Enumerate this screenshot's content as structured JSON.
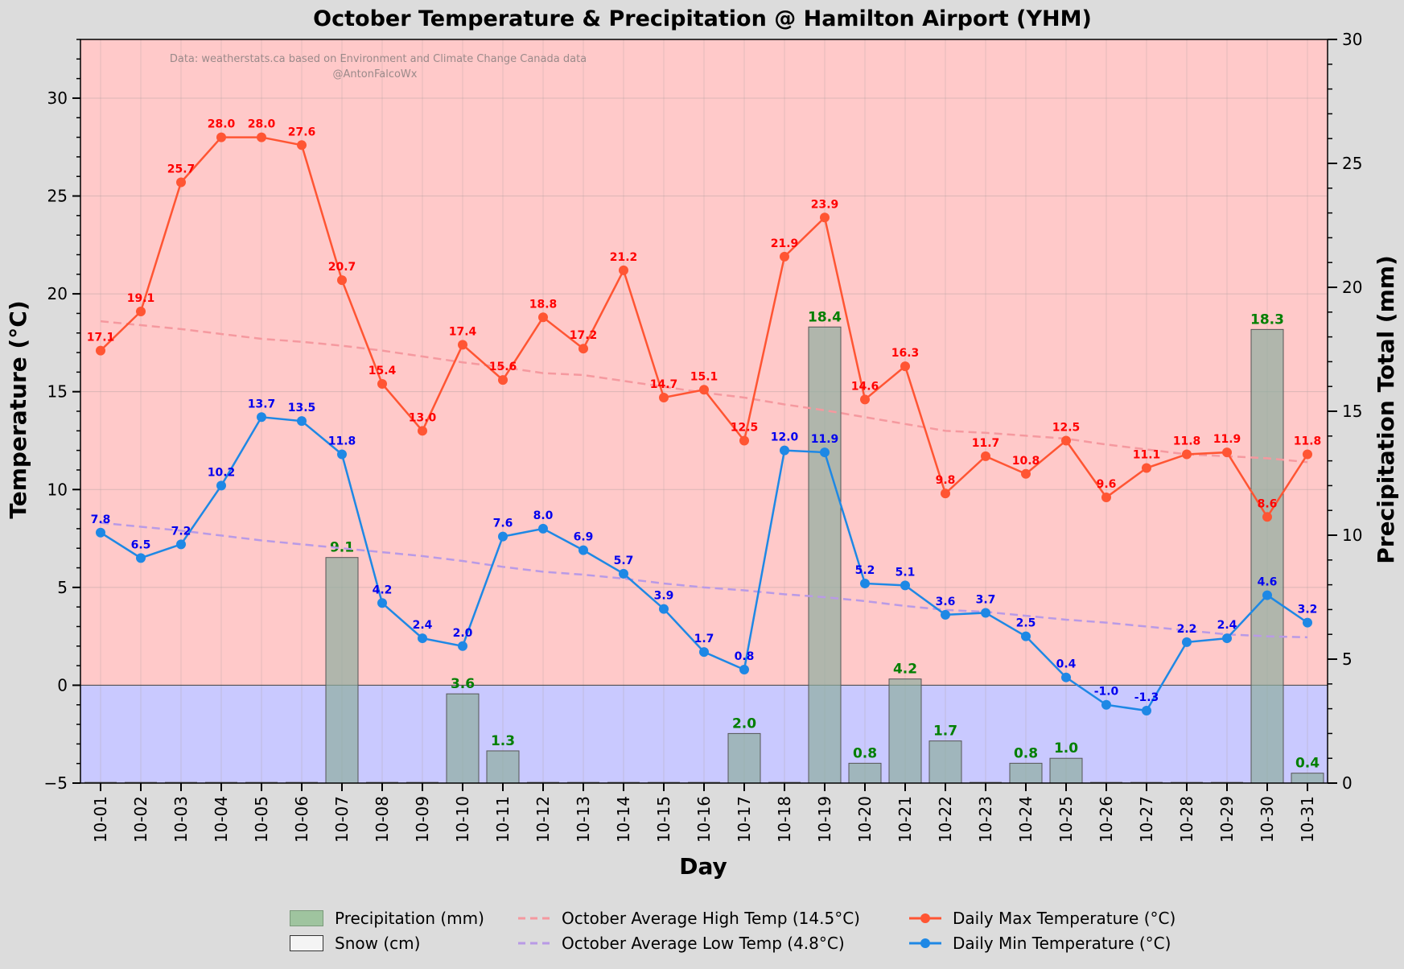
{
  "chart_data": {
    "type": "bar+line",
    "title": "October Temperature & Precipitation @ Hamilton Airport (YHM)",
    "xlabel": "Day",
    "ylabel_left": "Temperature (°C)",
    "ylabel_right": "Precipitation Total (mm)",
    "ylim_left": [
      -5,
      33
    ],
    "ylim_right": [
      0,
      30
    ],
    "yticks_left": [
      -5,
      0,
      5,
      10,
      15,
      20,
      25,
      30
    ],
    "yticks_right": [
      0,
      5,
      10,
      15,
      20,
      25,
      30
    ],
    "watermark": [
      "Data: weatherstats.ca based on Environment and Climate Change Canada data",
      "@AntonFalcoWx"
    ],
    "categories": [
      "10-01",
      "10-02",
      "10-03",
      "10-04",
      "10-05",
      "10-06",
      "10-07",
      "10-08",
      "10-09",
      "10-10",
      "10-11",
      "10-12",
      "10-13",
      "10-14",
      "10-15",
      "10-16",
      "10-17",
      "10-18",
      "10-19",
      "10-20",
      "10-21",
      "10-22",
      "10-23",
      "10-24",
      "10-25",
      "10-26",
      "10-27",
      "10-28",
      "10-29",
      "10-30",
      "10-31"
    ],
    "max_temp": [
      17.1,
      19.1,
      25.7,
      28.0,
      28.0,
      27.6,
      20.7,
      15.4,
      13.0,
      17.4,
      15.6,
      18.8,
      17.2,
      21.2,
      14.7,
      15.1,
      12.5,
      21.9,
      23.9,
      14.6,
      16.3,
      9.8,
      11.7,
      10.8,
      12.5,
      9.6,
      11.1,
      11.8,
      11.9,
      8.6,
      11.8
    ],
    "min_temp": [
      7.8,
      6.5,
      7.2,
      10.2,
      13.7,
      13.5,
      11.8,
      4.2,
      2.4,
      2.0,
      7.6,
      8.0,
      6.9,
      5.7,
      3.9,
      1.7,
      0.8,
      12.0,
      11.9,
      5.2,
      5.1,
      3.6,
      3.7,
      2.5,
      0.4,
      -1.0,
      -1.3,
      2.2,
      2.4,
      4.6,
      3.2
    ],
    "precip": [
      0,
      0,
      0,
      0,
      0,
      0,
      9.1,
      0,
      0,
      3.6,
      1.3,
      0,
      0,
      0,
      0,
      0,
      2.0,
      0,
      18.4,
      0.8,
      4.2,
      1.7,
      0,
      0.8,
      1.0,
      0,
      0,
      0,
      0,
      18.3,
      0.4
    ],
    "avg_high": [
      18.6,
      18.4,
      18.2,
      17.95,
      17.7,
      17.55,
      17.35,
      17.1,
      16.8,
      16.5,
      16.25,
      15.95,
      15.85,
      15.55,
      15.25,
      14.95,
      14.7,
      14.35,
      14.05,
      13.7,
      13.35,
      13.0,
      12.9,
      12.75,
      12.6,
      12.3,
      12.05,
      11.8,
      11.7,
      11.6,
      11.4
    ],
    "avg_low": [
      8.3,
      8.1,
      7.9,
      7.65,
      7.4,
      7.2,
      7.0,
      6.8,
      6.6,
      6.35,
      6.05,
      5.8,
      5.65,
      5.45,
      5.2,
      5.0,
      4.85,
      4.65,
      4.5,
      4.3,
      4.05,
      3.85,
      3.75,
      3.55,
      3.35,
      3.2,
      3.0,
      2.8,
      2.6,
      2.5,
      2.45
    ],
    "legend": [
      "Precipitation (mm)",
      "Snow (cm)",
      "October Average High Temp (14.5°C)",
      "October Average Low Temp (4.8°C)",
      "Daily Max Temperature (°C)",
      "Daily Min Temperature (°C)"
    ],
    "legend_position": "bottom-center",
    "colors": {
      "max": "#ff5533",
      "min": "#1e88e5",
      "max_label": "#ff0000",
      "min_label": "#0000ee",
      "precip_label": "#007f00",
      "bar": "#8fae9f",
      "warm_bg": "#ffc9c9",
      "cold_bg": "#c9c9ff",
      "avg_high": "#f5999f",
      "avg_low": "#b99ae6"
    }
  }
}
